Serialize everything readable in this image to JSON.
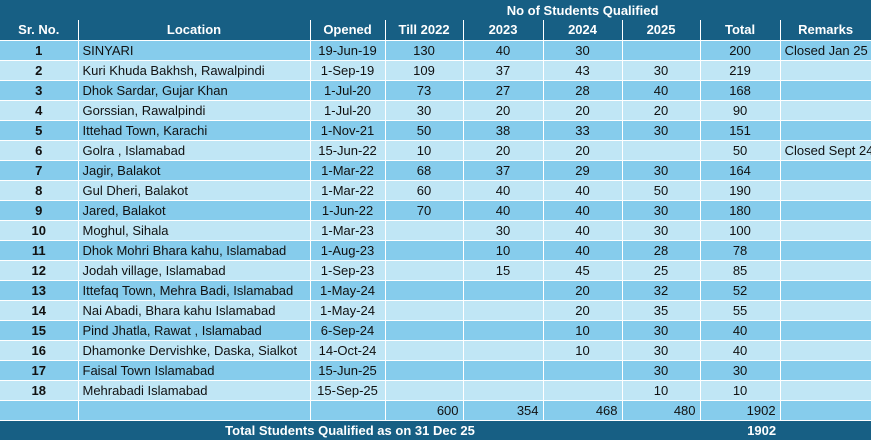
{
  "header": {
    "group": "No of Students Qualified",
    "columns": [
      "Sr. No.",
      "Location",
      "Opened",
      "Till 2022",
      "2023",
      "2024",
      "2025",
      "Total",
      "Remarks"
    ]
  },
  "rows": [
    [
      "1",
      "SINYARI",
      "19-Jun-19",
      "130",
      "40",
      "30",
      "",
      "200",
      "Closed Jan 25"
    ],
    [
      "2",
      "Kuri Khuda Bakhsh, Rawalpindi",
      "1-Sep-19",
      "109",
      "37",
      "43",
      "30",
      "219",
      ""
    ],
    [
      "3",
      "Dhok Sardar, Gujar Khan",
      "1-Jul-20",
      "73",
      "27",
      "28",
      "40",
      "168",
      ""
    ],
    [
      "4",
      "Gorssian, Rawalpindi",
      "1-Jul-20",
      "30",
      "20",
      "20",
      "20",
      "90",
      ""
    ],
    [
      "5",
      "Ittehad Town, Karachi",
      "1-Nov-21",
      "50",
      "38",
      "33",
      "30",
      "151",
      ""
    ],
    [
      "6",
      "Golra , Islamabad",
      "15-Jun-22",
      "10",
      "20",
      "20",
      "",
      "50",
      "Closed Sept 24"
    ],
    [
      "7",
      "Jagir, Balakot",
      "1-Mar-22",
      "68",
      "37",
      "29",
      "30",
      "164",
      ""
    ],
    [
      "8",
      "Gul Dheri, Balakot",
      "1-Mar-22",
      "60",
      "40",
      "40",
      "50",
      "190",
      ""
    ],
    [
      "9",
      "Jared, Balakot",
      "1-Jun-22",
      "70",
      "40",
      "40",
      "30",
      "180",
      ""
    ],
    [
      "10",
      "Moghul, Sihala",
      "1-Mar-23",
      "",
      "30",
      "40",
      "30",
      "100",
      ""
    ],
    [
      "11",
      "Dhok Mohri Bhara kahu, Islamabad",
      "1-Aug-23",
      "",
      "10",
      "40",
      "28",
      "78",
      ""
    ],
    [
      "12",
      "Jodah village, Islamabad",
      "1-Sep-23",
      "",
      "15",
      "45",
      "25",
      "85",
      ""
    ],
    [
      "13",
      "Ittefaq Town, Mehra Badi, Islamabad",
      "1-May-24",
      "",
      "",
      "20",
      "32",
      "52",
      ""
    ],
    [
      "14",
      "Nai Abadi, Bhara kahu Islamabad",
      "1-May-24",
      "",
      "",
      "20",
      "35",
      "55",
      ""
    ],
    [
      "15",
      "Pind Jhatla, Rawat , Islamabad",
      "6-Sep-24",
      "",
      "",
      "10",
      "30",
      "40",
      ""
    ],
    [
      "16",
      "Dhamonke Dervishke, Daska, Sialkot",
      "14-Oct-24",
      "",
      "",
      "10",
      "30",
      "40",
      ""
    ],
    [
      "17",
      "Faisal Town Islamabad",
      "15-Jun-25",
      "",
      "",
      "",
      "30",
      "30",
      ""
    ],
    [
      "18",
      "Mehrabadi Islamabad",
      "15-Sep-25",
      "",
      "",
      "",
      "10",
      "10",
      ""
    ]
  ],
  "totals": [
    "600",
    "354",
    "468",
    "480",
    "1902"
  ],
  "footer": {
    "label": "Total Students Qualified as on 31 Dec 25",
    "total": "1902"
  },
  "colors": {
    "header": "#175f84",
    "row_odd": "#86ccec",
    "row_even": "#c0e6f5"
  }
}
